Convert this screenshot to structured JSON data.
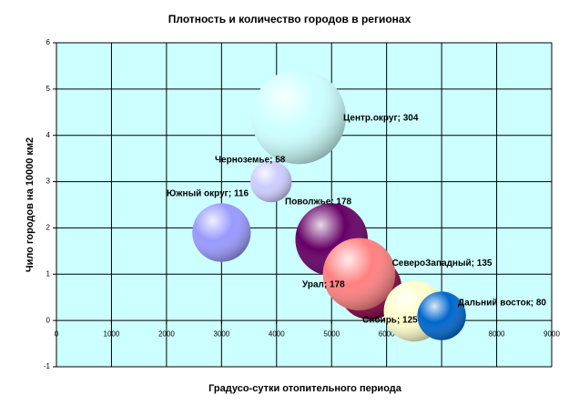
{
  "chart_data": {
    "type": "bubble",
    "title": "Плотность и количество городов в регионах",
    "x_label": "Градусо-сутки отопительного периода",
    "y_label": "Чило городов на 10000 км2",
    "xlim": [
      0,
      9000
    ],
    "xticks": [
      0,
      1000,
      2000,
      3000,
      4000,
      5000,
      6000,
      7000,
      8000,
      9000
    ],
    "ylim": [
      -1,
      6
    ],
    "yticks": [
      -1,
      0,
      1,
      2,
      3,
      4,
      5,
      6
    ],
    "grid": true,
    "plot_background": "#ccffff",
    "series": [
      {
        "color": "#ccffff",
        "x": [
          4400
        ],
        "values": [
          4.4
        ],
        "sizes": [
          304
        ],
        "value_labels": [
          "Центр.округ; 304"
        ]
      },
      {
        "color": "#ccccff",
        "x": [
          3900
        ],
        "values": [
          3.0
        ],
        "sizes": [
          58
        ],
        "value_labels": [
          "Черноземье; 58"
        ]
      },
      {
        "color": "#9999ff",
        "x": [
          3000
        ],
        "values": [
          1.9
        ],
        "sizes": [
          116
        ],
        "value_labels": [
          "Южный округ; 116"
        ]
      },
      {
        "color": "#660066",
        "x": [
          5000
        ],
        "values": [
          1.75
        ],
        "sizes": [
          178
        ],
        "value_labels": [
          "Поволжье; 178"
        ]
      },
      {
        "color": "#800040",
        "x": [
          5700
        ],
        "values": [
          0.7
        ],
        "sizes": [
          135
        ],
        "value_labels": [
          "СевероЗападный; 135"
        ]
      },
      {
        "color": "#ff8080",
        "x": [
          5500
        ],
        "values": [
          1.0
        ],
        "sizes": [
          178
        ],
        "value_labels": [
          "Урал; 178"
        ]
      },
      {
        "color": "#ffffcc",
        "x": [
          6500
        ],
        "values": [
          0.2
        ],
        "sizes": [
          125
        ],
        "value_labels": [
          "Сибирь; 125"
        ]
      },
      {
        "color": "#0066cc",
        "x": [
          7000
        ],
        "values": [
          0.1
        ],
        "sizes": [
          80
        ],
        "value_labels": [
          "Дальний восток; 80"
        ]
      }
    ]
  }
}
